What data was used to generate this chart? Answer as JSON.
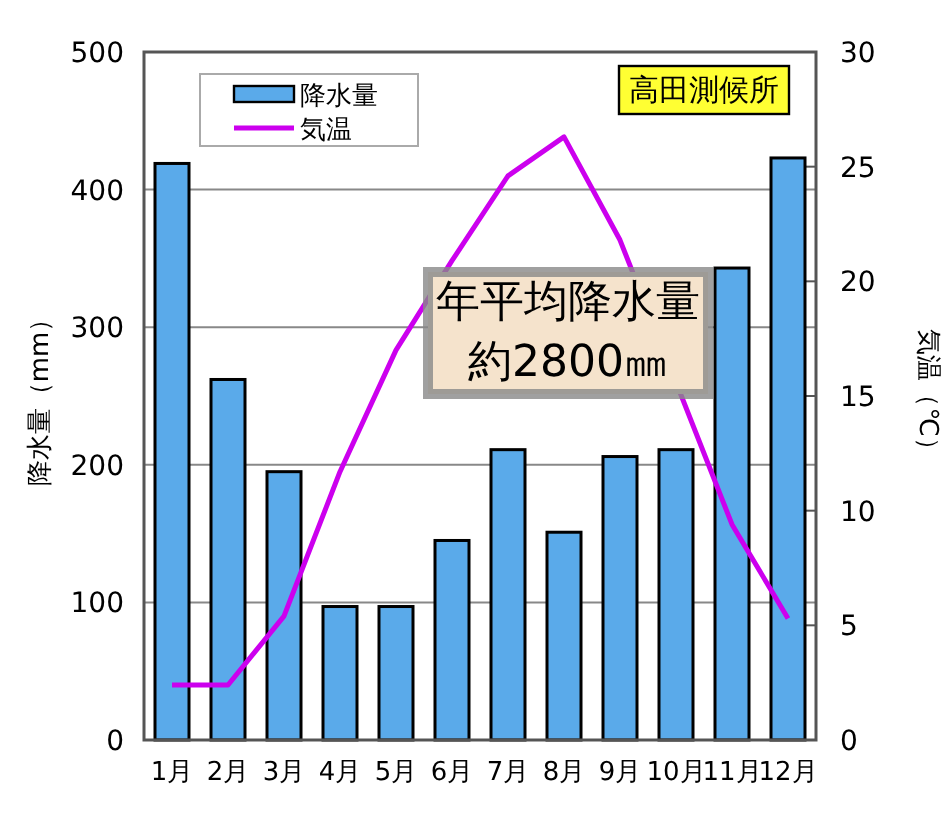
{
  "chart_data": {
    "type": "bar",
    "categories": [
      "1月",
      "2月",
      "3月",
      "4月",
      "5月",
      "6月",
      "7月",
      "8月",
      "9月",
      "10月",
      "11月",
      "12月"
    ],
    "series": [
      {
        "name": "降水量",
        "color": "#5aaaea",
        "values": [
          419,
          262,
          195,
          97,
          97,
          145,
          211,
          151,
          206,
          211,
          343,
          423
        ]
      },
      {
        "name": "気温",
        "type": "line",
        "axis": "y2",
        "color": "#cc00ee",
        "values": [
          2.4,
          2.4,
          5.4,
          11.7,
          17,
          20.9,
          24.6,
          26.3,
          21.8,
          null,
          9.4,
          5.3
        ]
      }
    ],
    "ylabel": "降水量（mm）",
    "y2label": "気温（℃）",
    "ylim": [
      0,
      500
    ],
    "yticks": [
      0,
      100,
      200,
      300,
      400,
      500
    ],
    "y2lim": [
      0,
      30
    ],
    "y2ticks": [
      0,
      5,
      10,
      15,
      20,
      25,
      30
    ],
    "grid": "y",
    "legend": "top left",
    "marker": "none",
    "annotations": [
      "高田測候所",
      "年平均降水量",
      "約2800㎜"
    ]
  }
}
